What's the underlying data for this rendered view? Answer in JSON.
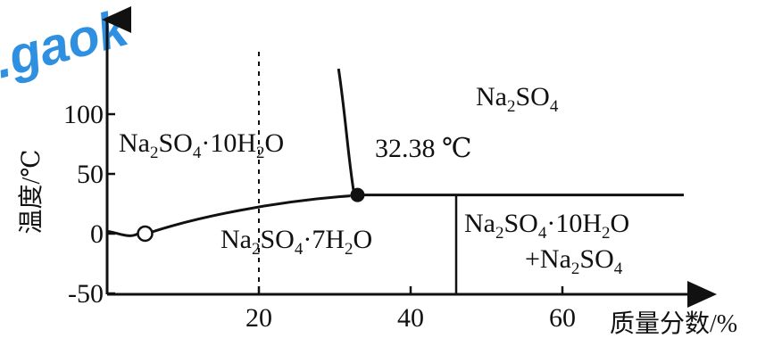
{
  "watermark": {
    "text": ".gaok",
    "color": "#2f8fe0"
  },
  "axes": {
    "y_title": "温度/℃",
    "x_title": "质量分数/%",
    "y_ticks": [
      {
        "value": 100,
        "label": "100"
      },
      {
        "value": 50,
        "label": "50"
      },
      {
        "value": 0,
        "label": "0"
      },
      {
        "value": -50,
        "label": "-50"
      }
    ],
    "x_ticks": [
      {
        "value": 20,
        "label": "20"
      },
      {
        "value": 40,
        "label": "40"
      },
      {
        "value": 60,
        "label": "60"
      }
    ]
  },
  "regions": {
    "upper_left": {
      "pre1": "Na",
      "sub1": "2",
      "mid1": "SO",
      "sub2": "4",
      "mid2": "·10H",
      "sub3": "2",
      "post": "O"
    },
    "upper_right": {
      "pre1": "Na",
      "sub1": "2",
      "mid1": "SO",
      "sub2": "4"
    },
    "lower_middle": {
      "pre1": "Na",
      "sub1": "2",
      "mid1": "SO",
      "sub2": "4",
      "mid2": "·7H",
      "sub3": "2",
      "post": "O"
    },
    "lower_right_line1": {
      "pre1": "Na",
      "sub1": "2",
      "mid1": "SO",
      "sub2": "4",
      "mid2": "·10H",
      "sub3": "2",
      "post": "O"
    },
    "lower_right_line2": {
      "pre1": "+Na",
      "sub1": "2",
      "mid1": "SO",
      "sub2": "4"
    }
  },
  "annotations": {
    "transition_temp": "32.38 ℃"
  },
  "points": {
    "open_circle": {
      "x": 5,
      "y": 0
    },
    "filled_circle": {
      "x": 33,
      "y": 32.38
    }
  },
  "x_range": [
    0,
    74
  ],
  "y_range": [
    -50,
    135
  ]
}
